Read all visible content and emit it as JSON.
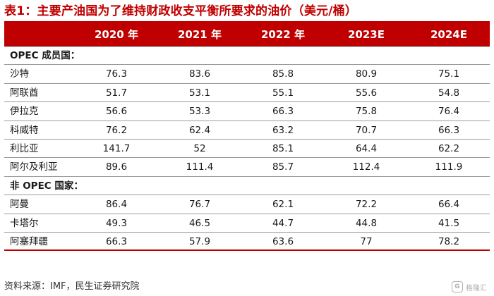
{
  "title": "表1：主要产油国为了维持财政收支平衡所要求的油价（美元/桶）",
  "header": [
    "",
    "2020 年",
    "2021 年",
    "2022 年",
    "2023E",
    "2024E"
  ],
  "sections": [
    {
      "label": "OPEC 成员国：",
      "rows": [
        {
          "country": "沙特",
          "values": [
            "76.3",
            "83.6",
            "85.8",
            "80.9",
            "75.1"
          ]
        },
        {
          "country": "阿联酋",
          "values": [
            "51.7",
            "53.1",
            "55.1",
            "55.6",
            "54.8"
          ]
        },
        {
          "country": "伊拉克",
          "values": [
            "56.6",
            "53.3",
            "66.3",
            "75.8",
            "76.4"
          ]
        },
        {
          "country": "科威特",
          "values": [
            "76.2",
            "62.4",
            "63.2",
            "70.7",
            "66.3"
          ]
        },
        {
          "country": "利比亚",
          "values": [
            "141.7",
            "52",
            "85.1",
            "64.4",
            "62.2"
          ]
        },
        {
          "country": "阿尔及利亚",
          "values": [
            "89.6",
            "111.4",
            "85.7",
            "112.4",
            "111.9"
          ]
        }
      ]
    },
    {
      "label": "非 OPEC 国家：",
      "rows": [
        {
          "country": "阿曼",
          "values": [
            "86.4",
            "76.7",
            "62.1",
            "72.2",
            "66.4"
          ]
        },
        {
          "country": "卡塔尔",
          "values": [
            "49.3",
            "46.5",
            "44.7",
            "44.8",
            "41.5"
          ]
        },
        {
          "country": "阿塞拜疆",
          "values": [
            "66.3",
            "57.9",
            "63.6",
            "77",
            "78.2"
          ]
        }
      ]
    }
  ],
  "source": "资料来源：IMF，民生证券研究院",
  "watermark": "格隆汇",
  "colors": {
    "accent": "#c00000",
    "header_text": "#ffffff"
  }
}
